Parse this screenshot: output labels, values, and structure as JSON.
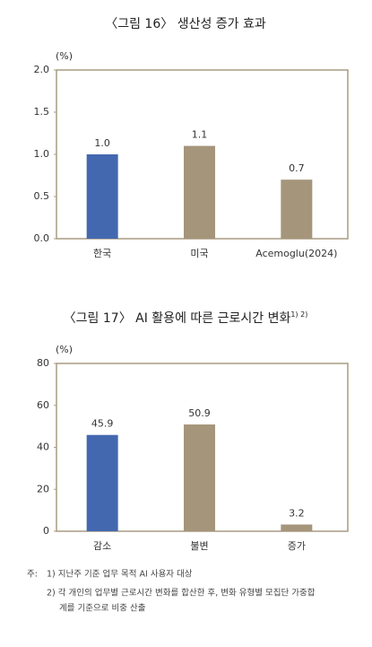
{
  "chart_data": [
    {
      "type": "bar",
      "title": "〈그림 16〉 생산성 증가 효과",
      "y_label": "(%)",
      "categories": [
        "한국",
        "미국",
        "Acemoglu(2024)"
      ],
      "values": [
        1.0,
        1.1,
        0.7
      ],
      "value_labels": [
        "1.0",
        "1.1",
        "0.7"
      ],
      "colors": [
        "#4468b0",
        "#a5957a",
        "#a5957a"
      ],
      "ylim": [
        0,
        2
      ],
      "yticks": [
        {
          "value": 0,
          "label": "0.0"
        },
        {
          "value": 0.5,
          "label": "0.5"
        },
        {
          "value": 1,
          "label": "1.0"
        },
        {
          "value": 1.5,
          "label": "1.5"
        },
        {
          "value": 2,
          "label": "2.0"
        }
      ]
    },
    {
      "type": "bar",
      "title": "〈그림 17〉 AI 활용에 따른 근로시간 변화",
      "title_note": "1) 2)",
      "y_label": "(%)",
      "categories": [
        "감소",
        "불변",
        "증가"
      ],
      "values": [
        45.9,
        50.9,
        3.2
      ],
      "colors": [
        "#4468b0",
        "#a5957a",
        "#a5957a"
      ],
      "ylim": [
        0,
        80
      ],
      "yticks": [
        0,
        20,
        40,
        60,
        80
      ]
    }
  ],
  "notes": {
    "label": "주:",
    "lines": [
      "1) 지난주 기준 업무 목적 AI 사용자 대상",
      "2) 각 개인의 업무별 근로시간 변화를 합산한 후, 변화 유형별 모집단 가중합",
      "계를 기준으로 비중 산출"
    ]
  }
}
